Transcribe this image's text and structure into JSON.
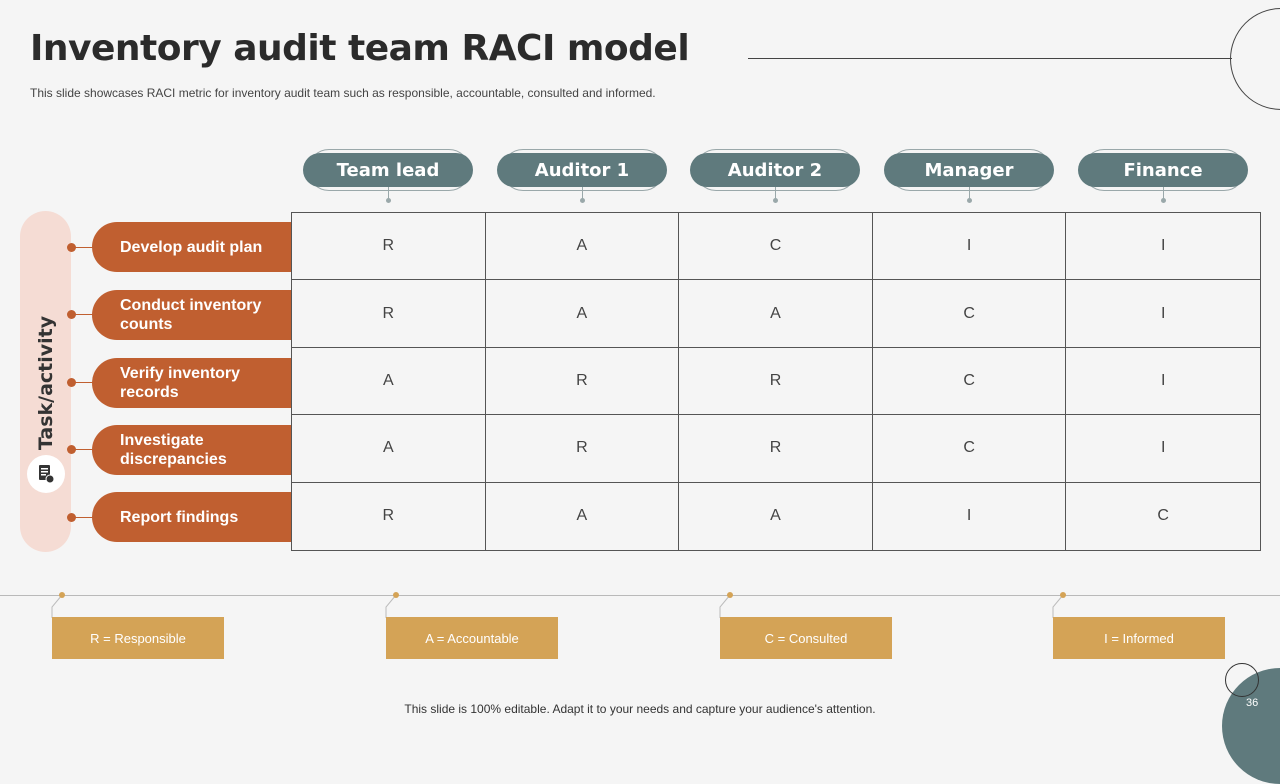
{
  "slide": {
    "title": "Inventory audit team RACI model",
    "subtitle": "This slide showcases RACI metric for inventory audit team such as responsible, accountable, consulted and informed.",
    "footer": "This slide is 100% editable. Adapt it to your needs and capture your audience's attention.",
    "page_number": "36"
  },
  "sidebar": {
    "label": "Task/activity",
    "icon": "checklist-icon"
  },
  "roles": [
    "Team lead",
    "Auditor 1",
    "Auditor 2",
    "Manager",
    "Finance"
  ],
  "tasks": [
    {
      "label": "Develop audit plan",
      "values": [
        "R",
        "A",
        "C",
        "I",
        "I"
      ]
    },
    {
      "label": "Conduct inventory counts",
      "values": [
        "R",
        "A",
        "A",
        "C",
        "I"
      ]
    },
    {
      "label": "Verify inventory records",
      "values": [
        "A",
        "R",
        "R",
        "C",
        "I"
      ]
    },
    {
      "label": "Investigate discrepancies",
      "values": [
        "A",
        "R",
        "R",
        "C",
        "I"
      ]
    },
    {
      "label": "Report findings",
      "values": [
        "R",
        "A",
        "A",
        "I",
        "C"
      ]
    }
  ],
  "legend": [
    "R = Responsible",
    "A = Accountable",
    "C = Consulted",
    "I = Informed"
  ],
  "colors": {
    "header": "#5f7a7d",
    "task": "#c05f30",
    "legend": "#d4a356",
    "sidebar": "#f5dcd4"
  }
}
